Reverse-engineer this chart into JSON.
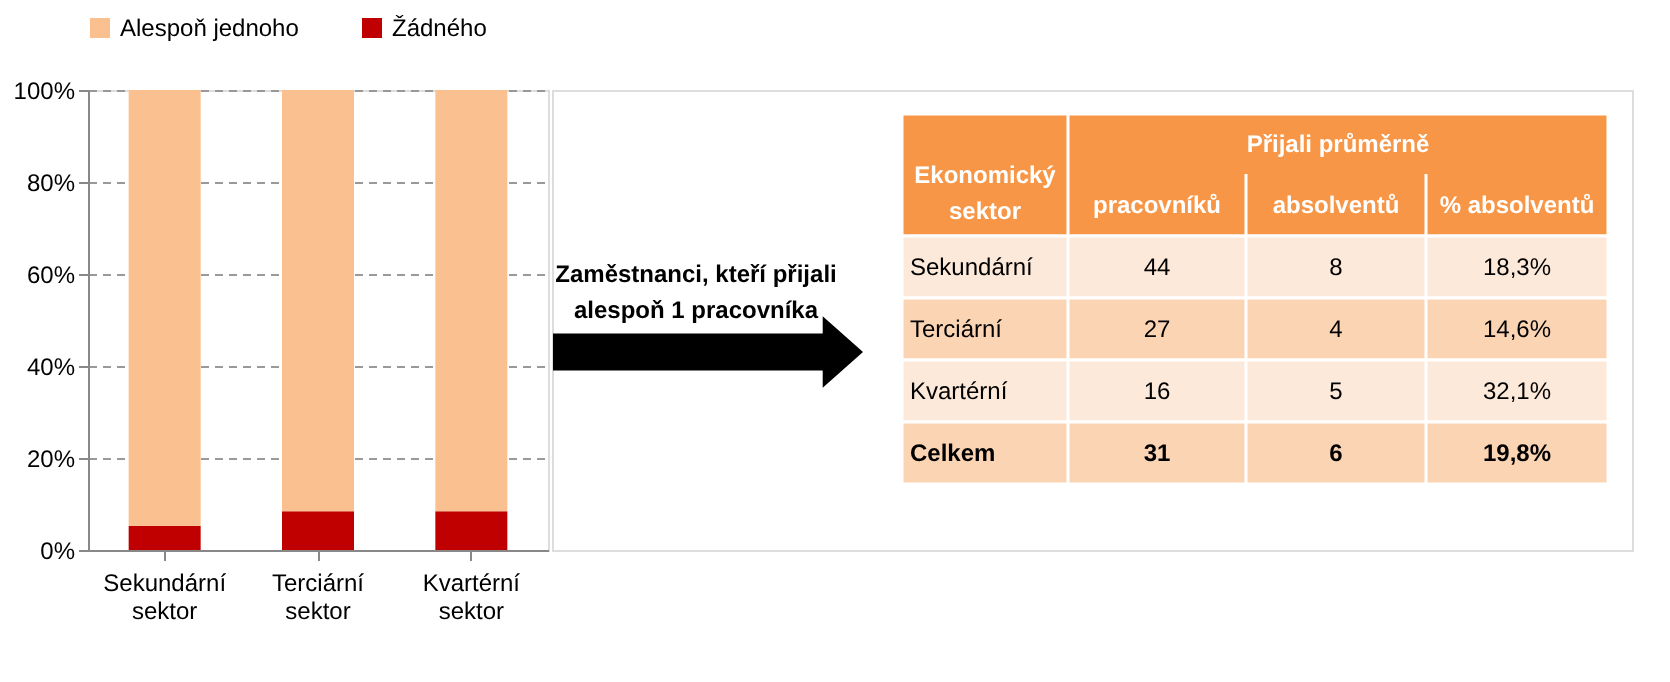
{
  "chart_data": [
    {
      "type": "bar",
      "stacked": true,
      "categories": [
        "Sekundární sektor",
        "Terciární sektor",
        "Kvartérní sektor"
      ],
      "series": [
        {
          "name": "Žádného",
          "color": "#c00000",
          "values": [
            5.2,
            8.4,
            8.4
          ]
        },
        {
          "name": "Alespoň jednoho",
          "color": "#fac090",
          "values": [
            94.8,
            91.6,
            91.6
          ]
        }
      ],
      "ylim": [
        0,
        100
      ],
      "yticks": [
        {
          "value": 0,
          "label": "0%"
        },
        {
          "value": 20,
          "label": "20%"
        },
        {
          "value": 40,
          "label": "40%"
        },
        {
          "value": 60,
          "label": "60%"
        },
        {
          "value": 80,
          "label": "80%"
        },
        {
          "value": 100,
          "label": "100%"
        }
      ],
      "grid": "y",
      "legend": "top"
    },
    {
      "type": "other",
      "annotations": [
        "Zaměstnanci, kteří přijali alespoň 1 pracovníka"
      ],
      "title": "Přijali průměrně",
      "ylabel": "Ekonomický sektor",
      "categories": [
        "pracovníků",
        "absolventů",
        "% absolventů"
      ],
      "y_categories": [
        "Sekundární",
        "Terciární",
        "Kvartérní",
        "Celkem"
      ],
      "cell_labels": [
        [
          "44",
          "8",
          "18,3%"
        ],
        [
          "27",
          "4",
          "14,6%"
        ],
        [
          "16",
          "5",
          "32,1%"
        ],
        [
          "31",
          "6",
          "19,8%"
        ]
      ]
    }
  ]
}
